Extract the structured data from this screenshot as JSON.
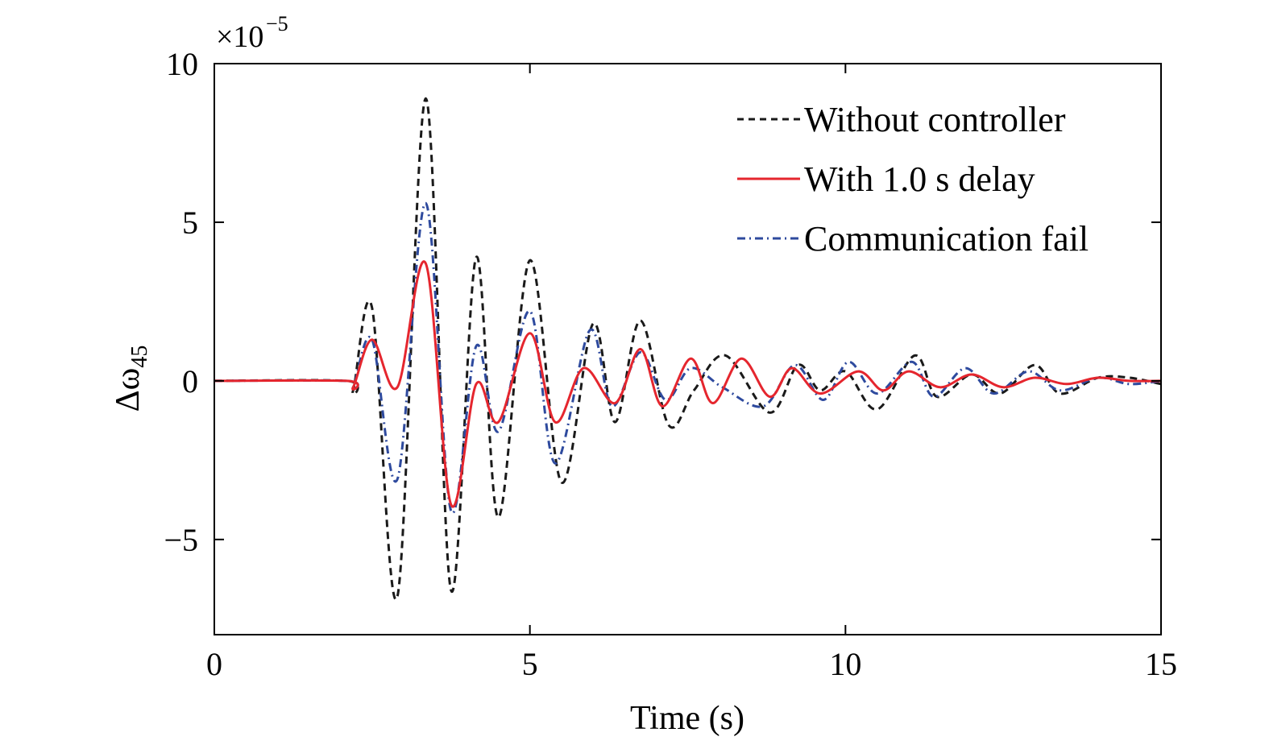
{
  "chart_data": {
    "type": "line",
    "xlabel": "Time (s)",
    "ylabel_symbol": "Δω",
    "ylabel_subscript": "45",
    "y_multiplier_base": "×10",
    "y_multiplier_exponent": "−5",
    "xlim": [
      0,
      15
    ],
    "ylim": [
      -8,
      10
    ],
    "x_ticks": [
      0,
      5,
      10,
      15
    ],
    "x_tick_labels": [
      "0",
      "5",
      "10",
      "15"
    ],
    "y_ticks": [
      -5,
      0,
      5,
      10
    ],
    "y_tick_labels": [
      "−5",
      "0",
      "5",
      "10"
    ],
    "grid": false,
    "legend_position": "top-right",
    "series": [
      {
        "name": "Without controller",
        "color": "#1a1a1a",
        "style": "dashed",
        "x": [
          0,
          2.1,
          2.2,
          2.5,
          2.9,
          3.35,
          3.75,
          4.15,
          4.5,
          5.0,
          5.5,
          6.0,
          6.35,
          6.75,
          7.2,
          7.6,
          8.1,
          8.8,
          9.25,
          9.6,
          10.0,
          10.5,
          11.1,
          11.45,
          12.0,
          12.45,
          13.0,
          13.4,
          14.0,
          14.5,
          15.0
        ],
        "y": [
          0,
          0,
          -0.3,
          2.3,
          -6.8,
          8.9,
          -6.6,
          3.9,
          -4.3,
          3.8,
          -3.2,
          1.8,
          -1.3,
          1.9,
          -1.4,
          -0.3,
          0.8,
          -1.0,
          0.5,
          -0.3,
          0.3,
          -0.9,
          0.8,
          -0.5,
          0.2,
          -0.4,
          0.5,
          -0.4,
          0.1,
          0.1,
          -0.1
        ]
      },
      {
        "name": "With 1.0 s delay",
        "color": "#e5262e",
        "style": "solid",
        "x": [
          0,
          2.1,
          2.2,
          2.5,
          2.9,
          3.35,
          3.75,
          4.15,
          4.5,
          5.0,
          5.4,
          5.85,
          6.35,
          6.75,
          7.1,
          7.55,
          7.9,
          8.35,
          8.8,
          9.15,
          9.6,
          10.2,
          10.6,
          11.0,
          11.5,
          12.0,
          12.5,
          13.0,
          13.5,
          14.0,
          14.5,
          15.0
        ],
        "y": [
          0,
          0,
          -0.2,
          1.3,
          -0.2,
          3.7,
          -3.9,
          -0.1,
          -1.3,
          1.5,
          -1.3,
          0.4,
          -0.7,
          1.0,
          -0.8,
          0.7,
          -0.7,
          0.7,
          -0.5,
          0.4,
          -0.4,
          0.3,
          -0.3,
          0.3,
          -0.2,
          0.2,
          -0.2,
          0.1,
          -0.1,
          0.1,
          0.0,
          0.0
        ]
      },
      {
        "name": "Communication fail",
        "color": "#2e4a9e",
        "style": "dashdot",
        "x": [
          0,
          2.1,
          2.2,
          2.5,
          2.9,
          3.35,
          3.75,
          4.15,
          4.5,
          5.0,
          5.4,
          5.95,
          6.3,
          6.75,
          7.15,
          7.55,
          8.05,
          8.7,
          9.2,
          9.65,
          10.05,
          10.5,
          11.05,
          11.4,
          11.9,
          12.35,
          12.9,
          13.4,
          14.0,
          14.5,
          15.0
        ],
        "y": [
          0,
          0,
          -0.2,
          1.3,
          -3.1,
          5.6,
          -4.1,
          1.1,
          -1.6,
          2.2,
          -2.6,
          1.6,
          -0.8,
          0.9,
          -0.6,
          0.4,
          -0.2,
          -0.8,
          0.5,
          -0.6,
          0.6,
          -0.4,
          0.6,
          -0.5,
          0.4,
          -0.4,
          0.3,
          -0.3,
          0.1,
          -0.1,
          0.0
        ]
      }
    ]
  }
}
